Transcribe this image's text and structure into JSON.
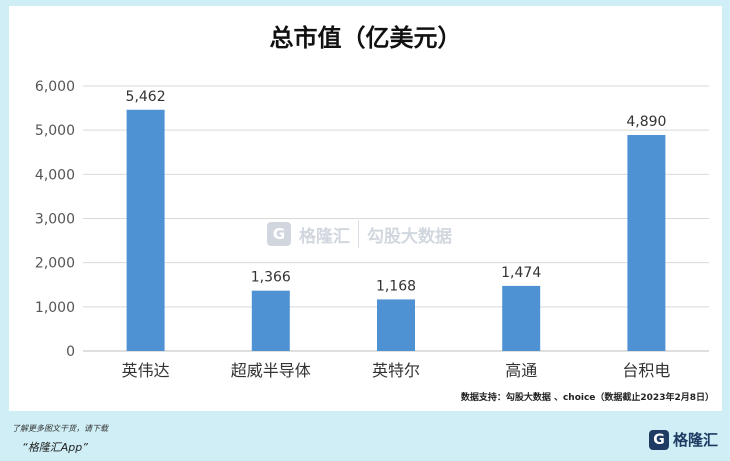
{
  "chart_data": {
    "type": "bar",
    "title": "总市值（亿美元）",
    "categories": [
      "英伟达",
      "超威半导体",
      "英特尔",
      "高通",
      "台积电"
    ],
    "values": [
      5462,
      1366,
      1168,
      1474,
      4890
    ],
    "value_labels": [
      "5,462",
      "1,366",
      "1,168",
      "1,474",
      "4,890"
    ],
    "ylim": [
      0,
      6000
    ],
    "yticks": [
      "0",
      "1,000",
      "2,000",
      "3,000",
      "4,000",
      "5,000",
      "6,000"
    ],
    "grid": true,
    "bar_color": "#4e92d4"
  },
  "source_note": "数据支持：勾股大数据 、choice（数据截止2023年2月8日）",
  "watermark": {
    "brand": "格隆汇",
    "sub": "勾股大数据"
  },
  "footer": {
    "line1": "了解更多图文干货，请下载",
    "line2": "“格隆汇App”",
    "brand": "格隆汇",
    "brand_icon": "G"
  },
  "background_color": "#cfeef5"
}
